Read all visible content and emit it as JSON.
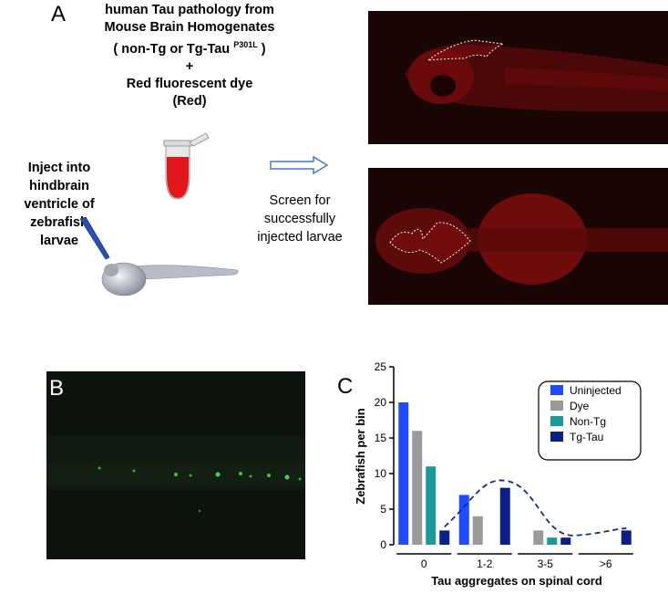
{
  "panel_a": {
    "letter": "A",
    "title_lines": [
      "human Tau pathology from",
      "Mouse Brain Homogenates",
      "( non-Tg or Tg-Tau ",
      "P301L",
      " )",
      "+",
      "Red fluorescent dye",
      "(Red)"
    ],
    "inject_lines": [
      "Inject into hindbrain",
      "ventricle of zebrafish",
      "larvae"
    ],
    "screen_lines": [
      "Screen for",
      "successfully",
      "injected larvae"
    ]
  },
  "panel_b": {
    "letter": "B"
  },
  "panel_c": {
    "letter": "C"
  },
  "colors": {
    "uninjected": "#1f4cff",
    "dye": "#9a9a9a",
    "non_tg": "#1a9a9a",
    "tg_tau": "#0a1f8a"
  },
  "chart_data": {
    "type": "bar",
    "ylabel": "Zebrafish per bin",
    "xlabel": "Tau aggregates on spinal cord",
    "ylim": [
      0,
      25
    ],
    "yticks": [
      "0",
      "5",
      "10",
      "15",
      "20",
      "25"
    ],
    "categories": [
      "0",
      "1-2",
      "3-5",
      ">6"
    ],
    "series": [
      {
        "name": "Uninjected",
        "values": [
          20,
          7,
          0,
          0
        ]
      },
      {
        "name": "Dye",
        "values": [
          16,
          4,
          2,
          0
        ]
      },
      {
        "name": "Non-Tg",
        "values": [
          11,
          0,
          1,
          0
        ]
      },
      {
        "name": "Tg-Tau",
        "values": [
          2,
          8,
          1,
          2
        ]
      }
    ],
    "legend_position": "top-right",
    "trend_line": "dashed fit over Tg-Tau",
    "grid": false
  }
}
